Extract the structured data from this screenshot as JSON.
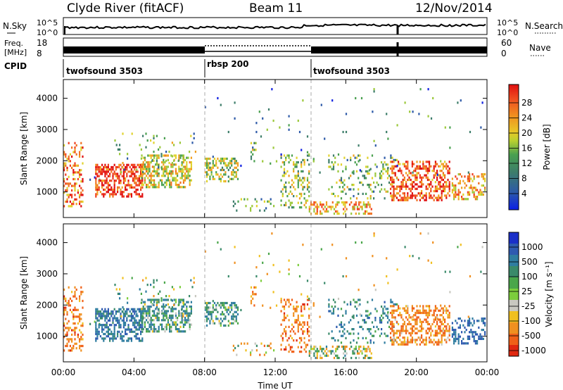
{
  "header": {
    "station": "Clyde River (fitACF)",
    "beam": "Beam 11",
    "date": "12/Nov/2014"
  },
  "strip_panels": {
    "nsky_label": "N.Sky",
    "nsky_ticks": [
      "10^5",
      "10^0"
    ],
    "nsearch_label": "N.Search",
    "freq_label_1": "Freq.",
    "freq_label_2": "[MHz]",
    "freq_ticks": [
      "18",
      "8"
    ],
    "nave_label": "Nave",
    "nave_ticks": [
      "60",
      "0"
    ],
    "cpid_label": "CPID"
  },
  "chart_data": {
    "type": "heatmap",
    "x_axis": {
      "label": "Time UT",
      "range_hours": [
        0,
        24
      ],
      "ticks": [
        "00:00",
        "04:00",
        "08:00",
        "12:00",
        "16:00",
        "20:00",
        "00:00"
      ],
      "tick_hours": [
        0,
        4,
        8,
        12,
        16,
        20,
        24
      ]
    },
    "y_axis": {
      "label": "Slant Range [km]",
      "range_km": [
        180,
        4600
      ],
      "ticks": [
        1000,
        2000,
        3000,
        4000
      ]
    },
    "cpid_segments": [
      {
        "label": "twofsound 3503",
        "start_hour": 0,
        "end_hour": 8
      },
      {
        "label": "rbsp 200",
        "start_hour": 8,
        "end_hour": 14
      },
      {
        "label": "twofsound 3503",
        "start_hour": 14,
        "end_hour": 24
      }
    ],
    "mode_change_hours": [
      8,
      14
    ],
    "panels": [
      {
        "name": "power",
        "colorbar_label": "Power [dB]",
        "colorbar_ticks": [
          "28",
          "24",
          "20",
          "16",
          "12",
          "8",
          "4"
        ],
        "colors": [
          "#1020e0",
          "#2d5aa8",
          "#3d7d6a",
          "#4aa050",
          "#9bc83a",
          "#e0d22c",
          "#f0a020",
          "#f07020",
          "#f04020",
          "#e01010"
        ]
      },
      {
        "name": "velocity",
        "colorbar_label": "Velocity [m s⁻¹]",
        "colorbar_ticks": [
          "1000",
          "500",
          "100",
          "25",
          "-25",
          "-100",
          "-500",
          "-1000"
        ],
        "colors": [
          "#1a2fc8",
          "#2e5ab0",
          "#2f7da0",
          "#3a8a6a",
          "#4aa64a",
          "#7ccd3c",
          "#c8c8c0",
          "#f0c020",
          "#f09020",
          "#f06018",
          "#e02810"
        ]
      }
    ],
    "echo_regions": [
      {
        "t0": 0.0,
        "t1": 1.2,
        "r0": 500,
        "r1": 2600,
        "p": 0.3,
        "pw": 22,
        "vel": -300
      },
      {
        "t0": 1.3,
        "t1": 2.2,
        "r0": 1300,
        "r1": 1500,
        "p": 0.1,
        "pw": 6,
        "vel": 100
      },
      {
        "t0": 1.8,
        "t1": 4.6,
        "r0": 800,
        "r1": 1900,
        "p": 0.55,
        "pw": 26,
        "vel": 400
      },
      {
        "t0": 4.4,
        "t1": 7.3,
        "r0": 1100,
        "r1": 2200,
        "p": 0.5,
        "pw": 16,
        "vel": 200
      },
      {
        "t0": 2.8,
        "t1": 7.6,
        "r0": 1500,
        "r1": 2900,
        "p": 0.06,
        "pw": 12,
        "vel": 100
      },
      {
        "t0": 8.0,
        "t1": 10.0,
        "r0": 1300,
        "r1": 2100,
        "p": 0.45,
        "pw": 14,
        "vel": 200
      },
      {
        "t0": 9.6,
        "t1": 12.0,
        "r0": 300,
        "r1": 800,
        "p": 0.12,
        "pw": 10,
        "vel": -100
      },
      {
        "t0": 10.6,
        "t1": 11.0,
        "r0": 1900,
        "r1": 2600,
        "p": 0.4,
        "pw": 12,
        "vel": -200
      },
      {
        "t0": 12.3,
        "t1": 14.0,
        "r0": 400,
        "r1": 2200,
        "p": 0.28,
        "pw": 14,
        "vel": -300
      },
      {
        "t0": 13.9,
        "t1": 17.5,
        "r0": 220,
        "r1": 700,
        "p": 0.45,
        "pw": 20,
        "vel": 20
      },
      {
        "t0": 15.0,
        "t1": 19.0,
        "r0": 700,
        "r1": 2200,
        "p": 0.18,
        "pw": 12,
        "vel": 300
      },
      {
        "t0": 18.5,
        "t1": 22.0,
        "r0": 700,
        "r1": 2000,
        "p": 0.45,
        "pw": 24,
        "vel": -250
      },
      {
        "t0": 22.0,
        "t1": 24.0,
        "r0": 700,
        "r1": 1600,
        "p": 0.35,
        "pw": 20,
        "vel": 500
      },
      {
        "t0": 8.0,
        "t1": 24.0,
        "r0": 1500,
        "r1": 4400,
        "p": 0.012,
        "pw": 8,
        "vel": 0
      }
    ]
  }
}
